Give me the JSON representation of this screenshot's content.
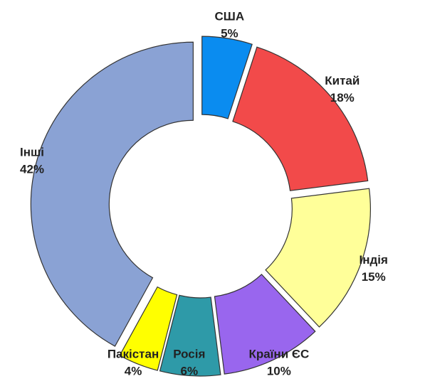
{
  "chart_data": {
    "type": "donut",
    "categories": [
      "США",
      "Китай",
      "Індія",
      "Країни ЄС",
      "Росія",
      "Пакістан",
      "Інші"
    ],
    "values": [
      5,
      18,
      15,
      10,
      6,
      4,
      42
    ],
    "value_labels": [
      "5%",
      "18%",
      "15%",
      "10%",
      "6%",
      "4%",
      "42%"
    ],
    "colors": [
      "#0a8cf0",
      "#f24a4a",
      "#ffff99",
      "#9966ee",
      "#2e9aa8",
      "#ffff00",
      "#8aa2d4"
    ]
  }
}
